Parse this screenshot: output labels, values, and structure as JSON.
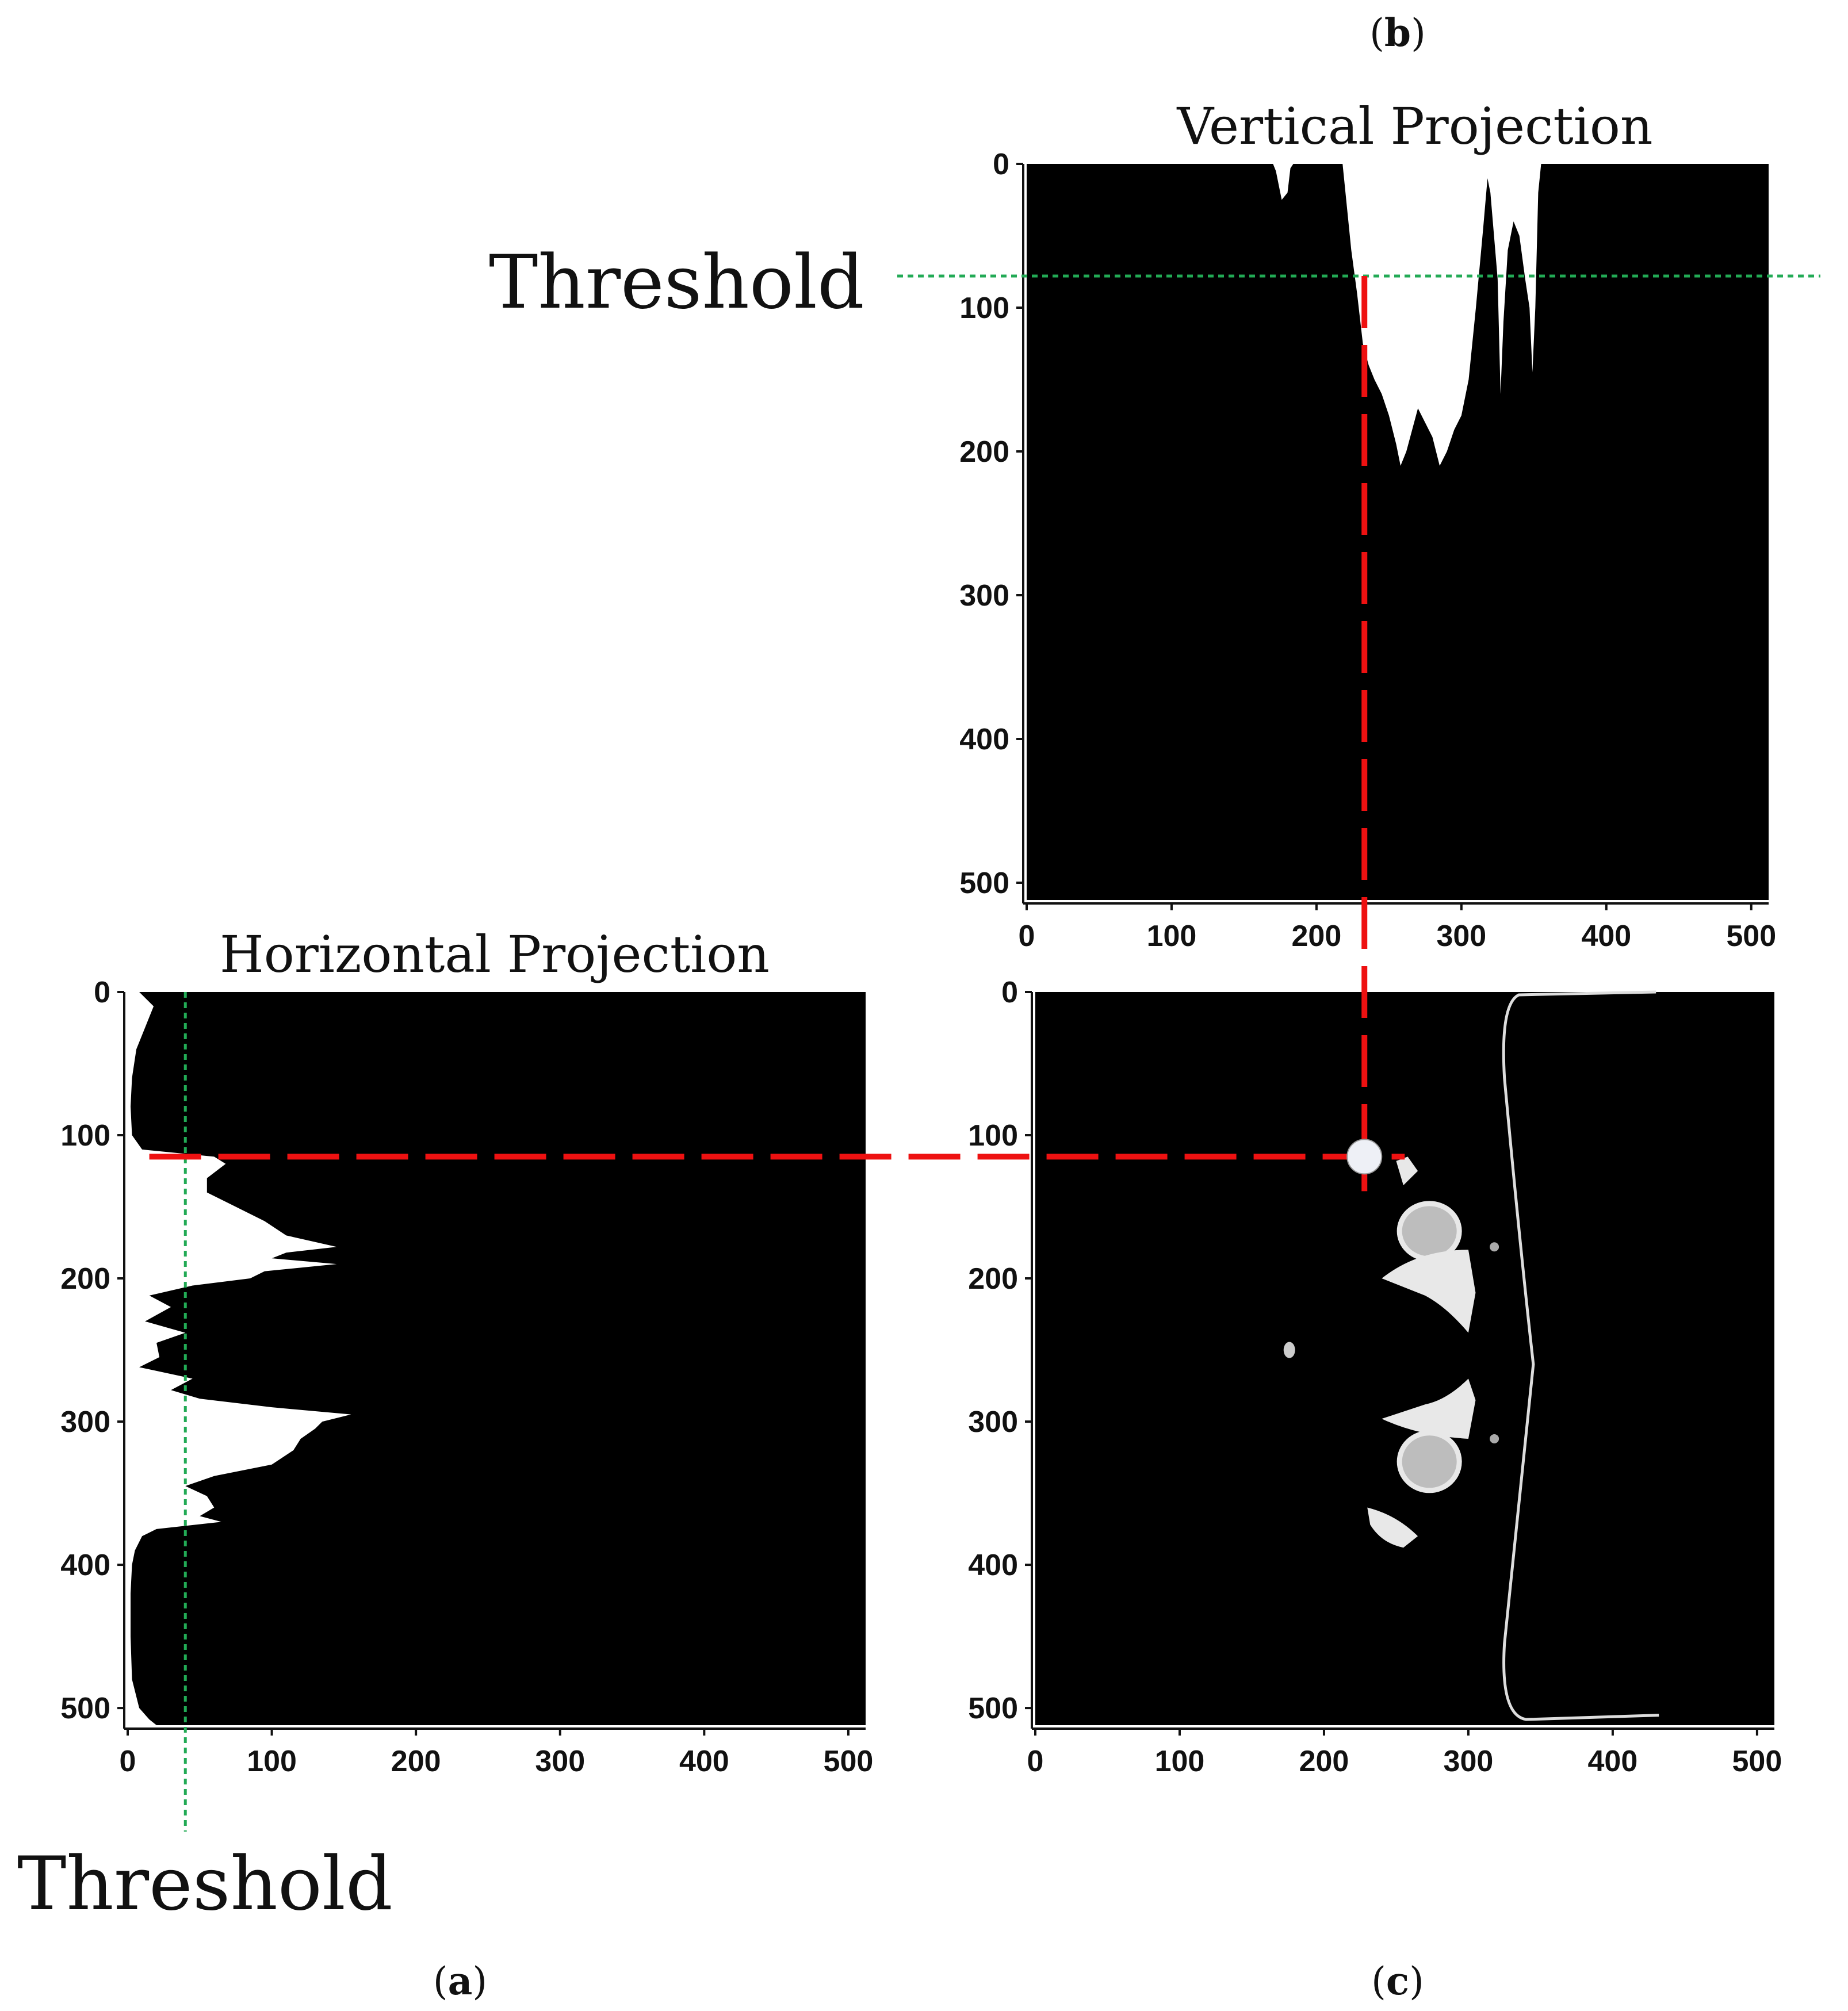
{
  "panels": {
    "a": {
      "paren_open": "(",
      "letter": "a",
      "paren_close": ")"
    },
    "b": {
      "paren_open": "(",
      "letter": "b",
      "paren_close": ")"
    },
    "c": {
      "paren_open": "(",
      "letter": "c",
      "paren_close": ")"
    }
  },
  "threshold_label": "Threshold",
  "colors": {
    "background": "#000000",
    "projection_fill": "#ffffff",
    "threshold_line": "#22aa55",
    "crosshair": "#ee1111",
    "intersection_marker": "#eef0f6"
  },
  "chart_data": [
    {
      "id": "a",
      "type": "area",
      "title": "Horizontal Projection",
      "orientation": "horizontal-profile",
      "xlim": [
        0,
        512
      ],
      "ylim": [
        512,
        0
      ],
      "xticks": [
        0,
        100,
        200,
        300,
        400,
        500
      ],
      "yticks": [
        0,
        100,
        200,
        300,
        400,
        500
      ],
      "threshold": 40,
      "crosshair_row": 115,
      "profile": [
        [
          0,
          8
        ],
        [
          10,
          18
        ],
        [
          20,
          14
        ],
        [
          40,
          6
        ],
        [
          60,
          3
        ],
        [
          80,
          2
        ],
        [
          100,
          3
        ],
        [
          110,
          10
        ],
        [
          115,
          60
        ],
        [
          120,
          68
        ],
        [
          130,
          55
        ],
        [
          140,
          55
        ],
        [
          150,
          75
        ],
        [
          160,
          95
        ],
        [
          170,
          110
        ],
        [
          178,
          145
        ],
        [
          182,
          110
        ],
        [
          186,
          100
        ],
        [
          190,
          145
        ],
        [
          195,
          95
        ],
        [
          200,
          85
        ],
        [
          205,
          45
        ],
        [
          212,
          15
        ],
        [
          220,
          30
        ],
        [
          230,
          12
        ],
        [
          238,
          40
        ],
        [
          245,
          20
        ],
        [
          255,
          22
        ],
        [
          262,
          8
        ],
        [
          270,
          45
        ],
        [
          278,
          30
        ],
        [
          284,
          50
        ],
        [
          290,
          100
        ],
        [
          295,
          155
        ],
        [
          300,
          135
        ],
        [
          305,
          130
        ],
        [
          312,
          120
        ],
        [
          320,
          115
        ],
        [
          330,
          100
        ],
        [
          338,
          60
        ],
        [
          345,
          40
        ],
        [
          352,
          55
        ],
        [
          360,
          60
        ],
        [
          366,
          50
        ],
        [
          370,
          65
        ],
        [
          375,
          20
        ],
        [
          380,
          10
        ],
        [
          390,
          5
        ],
        [
          400,
          3
        ],
        [
          420,
          2
        ],
        [
          450,
          2
        ],
        [
          480,
          3
        ],
        [
          500,
          8
        ],
        [
          508,
          15
        ],
        [
          512,
          20
        ]
      ]
    },
    {
      "id": "b",
      "type": "area",
      "title": "Vertical Projection",
      "orientation": "vertical-profile",
      "xlim": [
        0,
        512
      ],
      "ylim": [
        512,
        0
      ],
      "xticks": [
        0,
        100,
        200,
        300,
        400,
        500
      ],
      "yticks": [
        0,
        100,
        200,
        300,
        400,
        500
      ],
      "threshold": 78,
      "crosshair_col": 228,
      "profile": [
        [
          0,
          0
        ],
        [
          170,
          0
        ],
        [
          172,
          5
        ],
        [
          176,
          25
        ],
        [
          180,
          20
        ],
        [
          182,
          3
        ],
        [
          184,
          0
        ],
        [
          218,
          0
        ],
        [
          220,
          20
        ],
        [
          224,
          60
        ],
        [
          228,
          90
        ],
        [
          232,
          125
        ],
        [
          236,
          140
        ],
        [
          240,
          150
        ],
        [
          245,
          160
        ],
        [
          250,
          175
        ],
        [
          255,
          195
        ],
        [
          258,
          210
        ],
        [
          262,
          200
        ],
        [
          266,
          185
        ],
        [
          270,
          170
        ],
        [
          275,
          180
        ],
        [
          280,
          190
        ],
        [
          285,
          210
        ],
        [
          290,
          200
        ],
        [
          295,
          185
        ],
        [
          300,
          175
        ],
        [
          305,
          150
        ],
        [
          310,
          100
        ],
        [
          315,
          45
        ],
        [
          318,
          10
        ],
        [
          320,
          20
        ],
        [
          325,
          80
        ],
        [
          327,
          160
        ],
        [
          329,
          110
        ],
        [
          332,
          60
        ],
        [
          336,
          40
        ],
        [
          340,
          50
        ],
        [
          344,
          80
        ],
        [
          347,
          100
        ],
        [
          349,
          145
        ],
        [
          351,
          100
        ],
        [
          353,
          20
        ],
        [
          355,
          0
        ],
        [
          512,
          0
        ]
      ]
    },
    {
      "id": "c",
      "type": "image",
      "title": "",
      "xlim": [
        0,
        512
      ],
      "ylim": [
        512,
        0
      ],
      "xticks": [
        0,
        100,
        200,
        300,
        400,
        500
      ],
      "yticks": [
        0,
        100,
        200,
        300,
        400,
        500
      ],
      "intersection": {
        "x": 228,
        "y": 115
      }
    }
  ]
}
